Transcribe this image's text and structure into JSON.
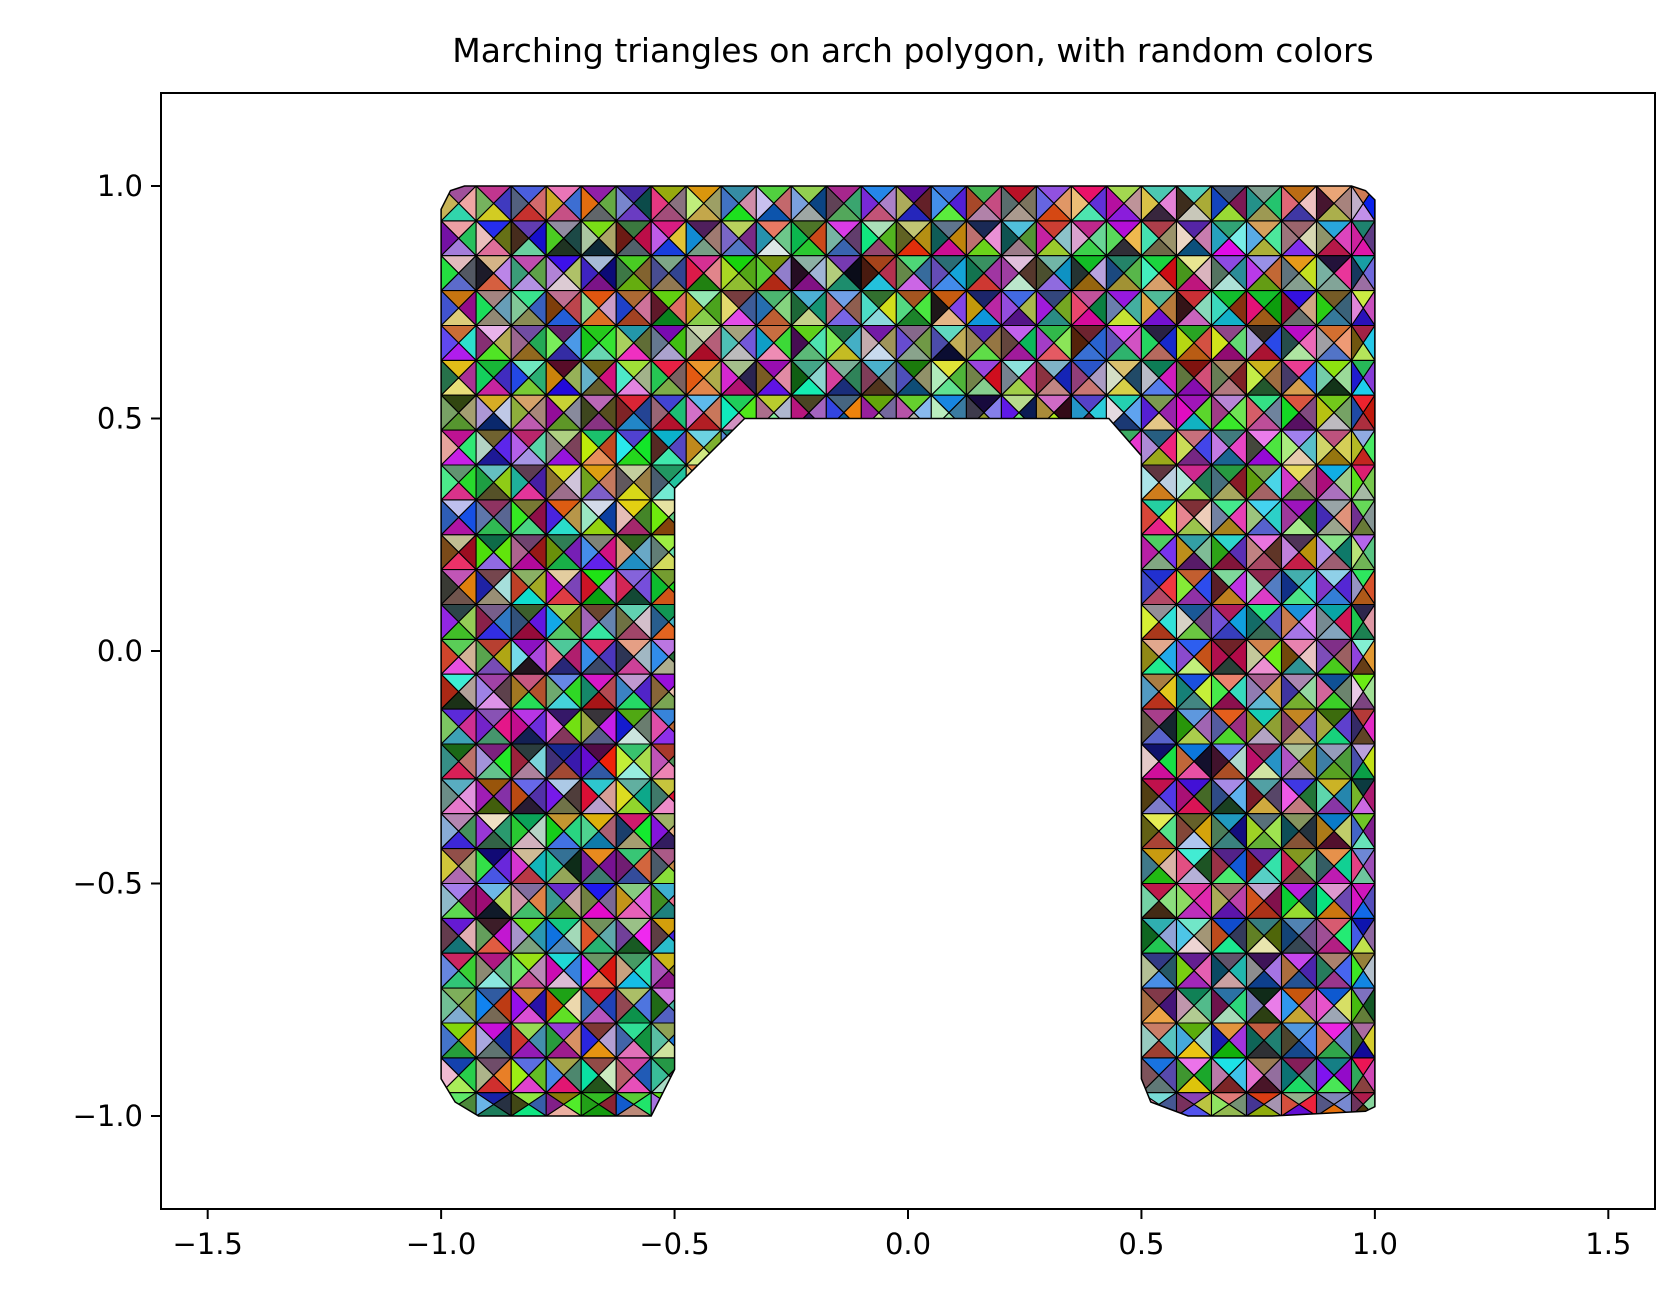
{
  "chart_data": {
    "type": "triangulation",
    "title": "Marching triangles on arch polygon, with random colors",
    "xlabel": "",
    "ylabel": "",
    "xlim": [
      -1.6,
      1.6
    ],
    "ylim": [
      -1.2,
      1.2
    ],
    "x_ticks": [
      -1.5,
      -1.0,
      -0.5,
      0.0,
      0.5,
      1.0,
      1.5
    ],
    "x_tick_labels": [
      "−1.5",
      "−1.0",
      "−0.5",
      "0.0",
      "0.5",
      "1.0",
      "1.5"
    ],
    "y_ticks": [
      1.0,
      0.5,
      0.0,
      -0.5,
      -1.0
    ],
    "y_tick_labels": [
      "1.0",
      "0.5",
      "0.0",
      "−0.5",
      "−1.0"
    ],
    "grid": false,
    "triangle_edge_color": "#000000",
    "polygon": [
      [
        -0.98,
        0.99
      ],
      [
        -0.95,
        1.0
      ],
      [
        0.95,
        1.0
      ],
      [
        0.98,
        0.99
      ],
      [
        1.0,
        0.97
      ],
      [
        1.0,
        -0.98
      ],
      [
        0.98,
        -0.99
      ],
      [
        0.78,
        -1.0
      ],
      [
        0.6,
        -1.0
      ],
      [
        0.52,
        -0.97
      ],
      [
        0.5,
        -0.92
      ],
      [
        0.5,
        0.42
      ],
      [
        0.43,
        0.5
      ],
      [
        -0.35,
        0.5
      ],
      [
        -0.5,
        0.35
      ],
      [
        -0.5,
        -0.9
      ],
      [
        -0.55,
        -1.0
      ],
      [
        -0.92,
        -1.0
      ],
      [
        -0.97,
        -0.97
      ],
      [
        -1.0,
        -0.92
      ],
      [
        -1.0,
        0.95
      ]
    ],
    "grid_cell_size": 0.075,
    "triangles_per_cell": 4,
    "color_mode": "random"
  }
}
